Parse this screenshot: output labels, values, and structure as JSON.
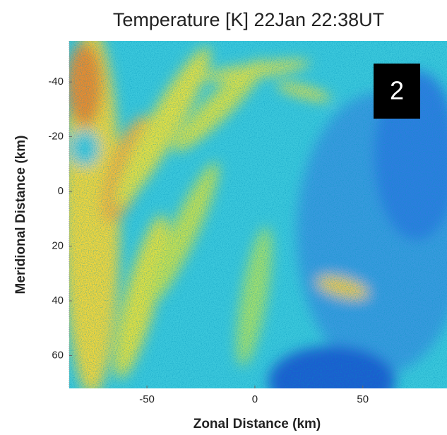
{
  "chart_data": {
    "type": "heatmap",
    "title": "Temperature [K] 22Jan 22:38UT",
    "xlabel": "Zonal Distance (km)",
    "ylabel": "Meridional Distance (km)",
    "xlim": [
      -86,
      89
    ],
    "xticks": [
      -50,
      0,
      50
    ],
    "ylim": [
      72,
      -55
    ],
    "yticks": [
      -40,
      -20,
      0,
      20,
      40,
      60
    ],
    "panel_label": "2"
  }
}
